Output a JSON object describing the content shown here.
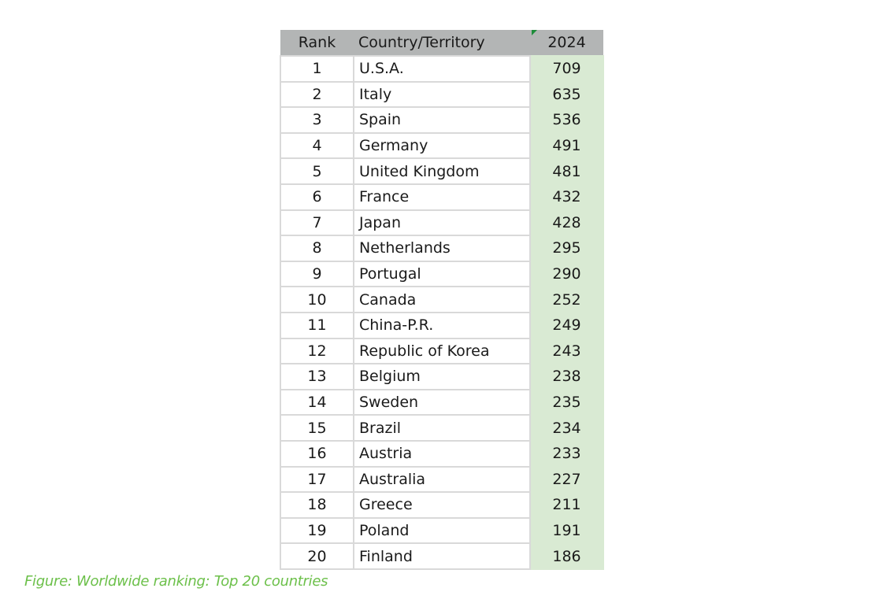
{
  "table": {
    "headers": [
      "Rank",
      "Country/Territory",
      "2024"
    ],
    "rows": [
      {
        "rank": "1",
        "country": "U.S.A.",
        "value": "709"
      },
      {
        "rank": "2",
        "country": "Italy",
        "value": "635"
      },
      {
        "rank": "3",
        "country": "Spain",
        "value": "536"
      },
      {
        "rank": "4",
        "country": "Germany",
        "value": "491"
      },
      {
        "rank": "5",
        "country": "United Kingdom",
        "value": "481"
      },
      {
        "rank": "6",
        "country": "France",
        "value": "432"
      },
      {
        "rank": "7",
        "country": "Japan",
        "value": "428"
      },
      {
        "rank": "8",
        "country": "Netherlands",
        "value": "295"
      },
      {
        "rank": "9",
        "country": "Portugal",
        "value": "290"
      },
      {
        "rank": "10",
        "country": "Canada",
        "value": "252"
      },
      {
        "rank": "11",
        "country": "China-P.R.",
        "value": "249"
      },
      {
        "rank": "12",
        "country": "Republic of Korea",
        "value": "243"
      },
      {
        "rank": "13",
        "country": "Belgium",
        "value": "238"
      },
      {
        "rank": "14",
        "country": "Sweden",
        "value": "235"
      },
      {
        "rank": "15",
        "country": "Brazil",
        "value": "234"
      },
      {
        "rank": "16",
        "country": "Austria",
        "value": "233"
      },
      {
        "rank": "17",
        "country": "Australia",
        "value": "227"
      },
      {
        "rank": "18",
        "country": "Greece",
        "value": "211"
      },
      {
        "rank": "19",
        "country": "Poland",
        "value": "191"
      },
      {
        "rank": "20",
        "country": "Finland",
        "value": "186"
      }
    ]
  },
  "caption": "Figure: Worldwide ranking: Top 20 countries",
  "colors": {
    "header_bg": "#b3b5b5",
    "value_bg": "#d9ead3",
    "caption": "#6cc04a"
  }
}
